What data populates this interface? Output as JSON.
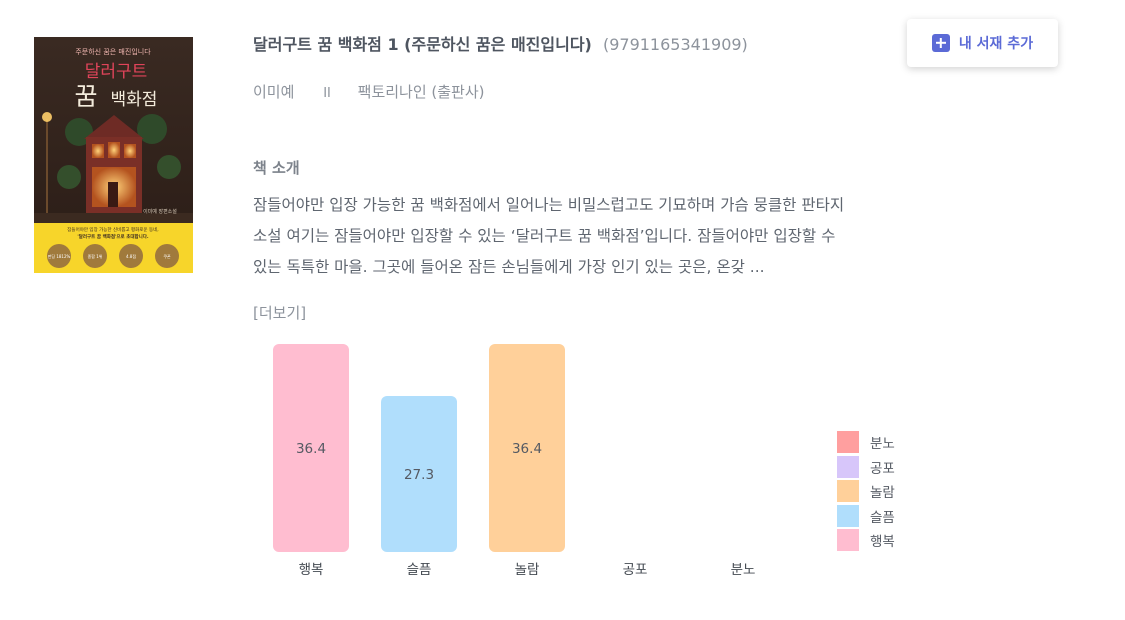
{
  "book": {
    "title": "달러구트 꿈 백화점 1 (주문하신 꿈은 매진입니다)",
    "isbn": "(9791165341909)",
    "author": "이미예",
    "separator": "II",
    "publisher": "팩토리나인 (출판사)",
    "cover": {
      "tagline": "주문하신 꿈은 매진입니다",
      "title_top": "달러구트",
      "title_bottom_a": "꿈",
      "title_bottom_b": "백화점",
      "author_small": "이미예 장편소설",
      "band_text_1": "잠들어야만 입장 가능한 신비롭고 평화로운 동네,",
      "band_text_2": "'달러구트 꿈 백화점'으로 초대합니다.",
      "badges": [
        "펀딩 1812%",
        "종합 1위",
        "4.8점",
        "쿠폰"
      ]
    }
  },
  "add_button": {
    "icon": "plus-square-icon",
    "label": "내 서재 추가"
  },
  "intro": {
    "title": "책 소개",
    "text": "잠들어야만 입장 가능한 꿈 백화점에서 일어나는 비밀스럽고도 기묘하며 가슴 뭉클한 판타지 소설 여기는 잠들어야만 입장할 수 있는 ‘달러구트 꿈 백화점’입니다. 잠들어야만 입장할 수 있는 독특한 마을. 그곳에 들어온 잠든 손님들에게 가장 인기 있는 곳은, 온갖 ...",
    "more_label": "[더보기]"
  },
  "chart_data": {
    "type": "bar",
    "categories": [
      "행복",
      "슬픔",
      "놀람",
      "공포",
      "분노"
    ],
    "values": [
      36.4,
      27.3,
      36.4,
      0,
      0
    ],
    "colors": [
      "#ffbdd0",
      "#b0defc",
      "#ffd09a",
      "#d7c6fa",
      "#ff9f9f"
    ],
    "value_labels": [
      "36.4",
      "27.3",
      "36.4",
      "",
      ""
    ],
    "ylim": [
      0,
      36.4
    ],
    "grid": false,
    "legend": {
      "placement": "right",
      "items": [
        {
          "label": "분노",
          "color": "#ff9f9f"
        },
        {
          "label": "공포",
          "color": "#d7c6fa"
        },
        {
          "label": "놀람",
          "color": "#ffd09a"
        },
        {
          "label": "슬픔",
          "color": "#b0defc"
        },
        {
          "label": "행복",
          "color": "#ffbdd0"
        }
      ]
    }
  }
}
